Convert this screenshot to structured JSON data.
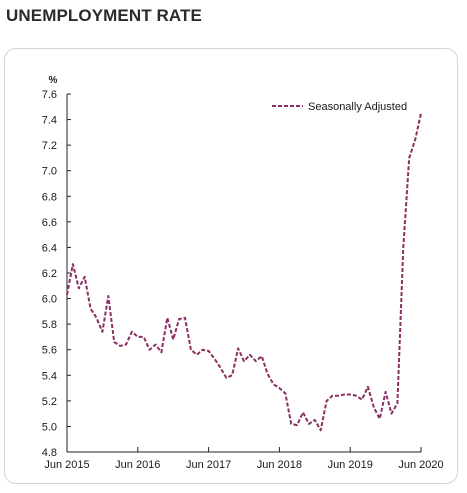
{
  "page": {
    "title": "UNEMPLOYMENT RATE"
  },
  "colors": {
    "series": "#8b2e62",
    "axis": "#222222",
    "panel_border": "#d4d4d4"
  },
  "chart_data": {
    "type": "line",
    "title": "UNEMPLOYMENT RATE",
    "ylabel": "%",
    "xlabel": "",
    "ylim": [
      4.8,
      7.6
    ],
    "y_ticks": [
      "4.8",
      "5.0",
      "5.2",
      "5.4",
      "5.6",
      "5.8",
      "6.0",
      "6.2",
      "6.4",
      "6.6",
      "6.8",
      "7.0",
      "7.2",
      "7.4",
      "7.6"
    ],
    "x_ticks": [
      "Jun 2015",
      "Jun 2016",
      "Jun 2017",
      "Jun 2018",
      "Jun 2019",
      "Jun 2020"
    ],
    "x_range": [
      "2015-06",
      "2020-06"
    ],
    "grid": false,
    "legend_position": "top-right",
    "series": [
      {
        "name": "Seasonally Adjusted",
        "line_style": "dashed",
        "x": [
          "2015-06",
          "2015-07",
          "2015-08",
          "2015-09",
          "2015-10",
          "2015-11",
          "2015-12",
          "2016-01",
          "2016-02",
          "2016-03",
          "2016-04",
          "2016-05",
          "2016-06",
          "2016-07",
          "2016-08",
          "2016-09",
          "2016-10",
          "2016-11",
          "2016-12",
          "2017-01",
          "2017-02",
          "2017-03",
          "2017-04",
          "2017-05",
          "2017-06",
          "2017-07",
          "2017-08",
          "2017-09",
          "2017-10",
          "2017-11",
          "2017-12",
          "2018-01",
          "2018-02",
          "2018-03",
          "2018-04",
          "2018-05",
          "2018-06",
          "2018-07",
          "2018-08",
          "2018-09",
          "2018-10",
          "2018-11",
          "2018-12",
          "2019-01",
          "2019-02",
          "2019-03",
          "2019-04",
          "2019-05",
          "2019-06",
          "2019-07",
          "2019-08",
          "2019-09",
          "2019-10",
          "2019-11",
          "2019-12",
          "2020-01",
          "2020-02",
          "2020-03",
          "2020-04",
          "2020-05",
          "2020-06"
        ],
        "values": [
          6.03,
          6.27,
          6.08,
          6.17,
          5.92,
          5.85,
          5.74,
          6.02,
          5.66,
          5.63,
          5.64,
          5.74,
          5.7,
          5.7,
          5.6,
          5.64,
          5.58,
          5.85,
          5.68,
          5.84,
          5.85,
          5.6,
          5.56,
          5.6,
          5.59,
          5.53,
          5.46,
          5.38,
          5.4,
          5.61,
          5.51,
          5.56,
          5.51,
          5.55,
          5.41,
          5.33,
          5.3,
          5.26,
          5.02,
          5.01,
          5.11,
          5.02,
          5.05,
          4.97,
          5.2,
          5.24,
          5.24,
          5.25,
          5.25,
          5.24,
          5.21,
          5.31,
          5.15,
          5.06,
          5.27,
          5.1,
          5.18,
          6.4,
          7.1,
          7.24,
          7.45
        ]
      }
    ]
  }
}
